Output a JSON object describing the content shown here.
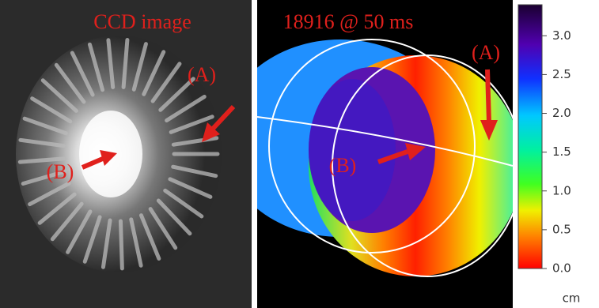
{
  "left_panel": {
    "title": "CCD image",
    "label_a": "(A)",
    "label_b": "(B)"
  },
  "right_panel": {
    "title": "18916 @ 50 ms",
    "label_a": "(A)",
    "label_b": "(B)"
  },
  "colorbar": {
    "lim": [
      0,
      3.4
    ],
    "ticks": [
      {
        "value": 0,
        "label": "0.0"
      },
      {
        "value": 0.5,
        "label": "0.5"
      },
      {
        "value": 1,
        "label": "1.0"
      },
      {
        "value": 1.5,
        "label": "1.5"
      },
      {
        "value": 2,
        "label": "2.0"
      },
      {
        "value": 2.5,
        "label": "2.5"
      },
      {
        "value": 3,
        "label": "3.0"
      }
    ],
    "unit": "cm"
  }
}
